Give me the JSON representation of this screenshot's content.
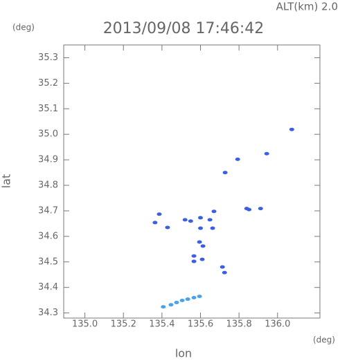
{
  "chart_data": {
    "type": "scatter",
    "title": "2013/09/08 17:46:42",
    "subtitle": "ALT(km) 2.0",
    "x_label": "lon",
    "y_label": "lat",
    "x_unit": "(deg)",
    "y_unit": "(deg)",
    "xlim": [
      134.89,
      136.22
    ],
    "ylim": [
      34.28,
      35.35
    ],
    "xticks": [
      {
        "value": 135,
        "label": "135.0"
      },
      135.2,
      135.4,
      135.6,
      135.8,
      {
        "value": 136,
        "label": "136.0"
      }
    ],
    "yticks": [
      34.3,
      34.4,
      34.5,
      34.6,
      34.7,
      34.8,
      34.9,
      {
        "value": 35,
        "label": "35.0"
      },
      35.1,
      35.2,
      35.3
    ],
    "series": [
      {
        "color": "#3c5ee0",
        "x": [
          136.074,
          135.944,
          135.793,
          135.728,
          135.84,
          135.852,
          135.912,
          135.67,
          135.386,
          135.364,
          135.429,
          135.52,
          135.549,
          135.6,
          135.649,
          135.6,
          135.663,
          135.595,
          135.613,
          135.566,
          135.609,
          135.566,
          135.714,
          135.725
        ],
        "y": [
          35.019,
          34.924,
          34.902,
          34.85,
          34.709,
          34.705,
          34.709,
          34.698,
          34.687,
          34.654,
          34.635,
          34.665,
          34.66,
          34.673,
          34.665,
          34.632,
          34.632,
          34.578,
          34.562,
          34.523,
          34.51,
          34.502,
          34.48,
          34.458
        ]
      },
      {
        "color": "#4aa2ee",
        "x": [
          135.407,
          135.447,
          135.476,
          135.505,
          135.534,
          135.566,
          135.595
        ],
        "y": [
          34.324,
          34.332,
          34.341,
          34.349,
          34.354,
          34.36,
          34.365
        ]
      }
    ]
  }
}
